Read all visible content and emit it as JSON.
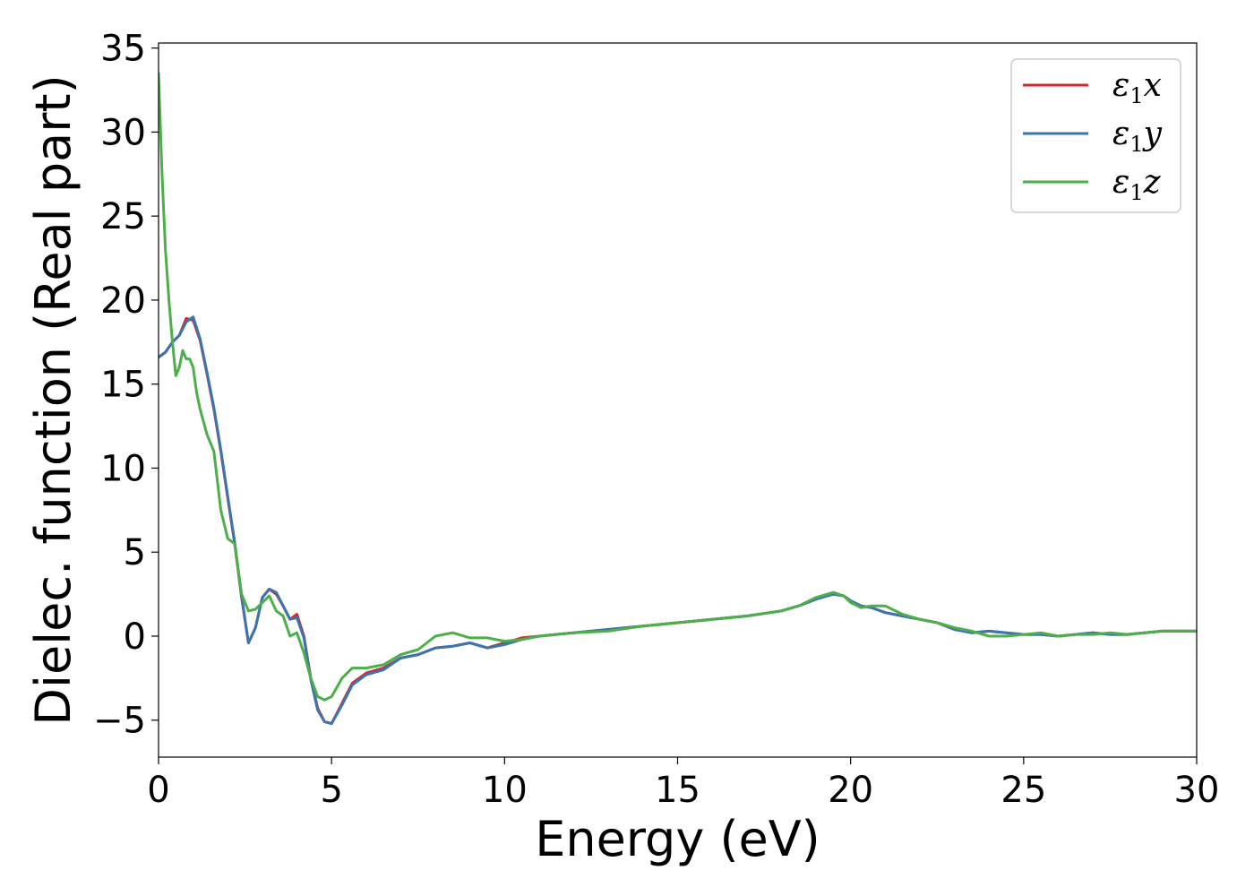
{
  "chart_data": {
    "type": "line",
    "title": "",
    "xlabel": "Energy (eV)",
    "ylabel": "Dielec. function (Real part)",
    "xlim": [
      0,
      30
    ],
    "ylim": [
      -7.2,
      35.3
    ],
    "xticks": [
      0,
      5,
      10,
      15,
      20,
      25,
      30
    ],
    "yticks": [
      -5,
      0,
      5,
      10,
      15,
      20,
      25,
      30,
      35
    ],
    "xtick_labels": [
      "0",
      "5",
      "10",
      "15",
      "20",
      "25",
      "30"
    ],
    "ytick_labels": [
      "−5",
      "0",
      "5",
      "10",
      "15",
      "20",
      "25",
      "30",
      "35"
    ],
    "grid": false,
    "legend_position": "top-right",
    "series": [
      {
        "name": "ε1x",
        "legend_main": "ε",
        "legend_sub": "1",
        "legend_tail": "x",
        "color": "#d62728",
        "x": [
          0,
          0.2,
          0.4,
          0.6,
          0.8,
          1.0,
          1.2,
          1.4,
          1.6,
          1.8,
          2.0,
          2.2,
          2.4,
          2.6,
          2.8,
          3.0,
          3.2,
          3.4,
          3.6,
          3.8,
          4.0,
          4.2,
          4.4,
          4.6,
          4.8,
          5.0,
          5.3,
          5.6,
          6.0,
          6.5,
          7.0,
          7.5,
          8.0,
          8.5,
          9.0,
          9.5,
          10.0,
          10.5,
          11,
          12,
          13,
          14,
          15,
          16,
          17,
          18,
          18.5,
          19,
          19.5,
          19.8,
          20.0,
          20.3,
          20.6,
          21,
          21.5,
          22,
          22.5,
          23,
          23.5,
          24,
          24.5,
          25,
          25.5,
          26,
          26.5,
          27,
          27.5,
          28,
          28.5,
          29,
          29.5,
          30
        ],
        "y": [
          16.6,
          16.9,
          17.5,
          17.9,
          18.9,
          18.8,
          17.6,
          15.6,
          13.5,
          11.0,
          8.2,
          5.5,
          2.3,
          -0.4,
          0.5,
          2.3,
          2.8,
          2.5,
          1.8,
          1.0,
          1.3,
          0.0,
          -2.5,
          -4.3,
          -5.1,
          -5.2,
          -4.0,
          -2.8,
          -2.2,
          -1.9,
          -1.3,
          -1.1,
          -0.7,
          -0.6,
          -0.4,
          -0.7,
          -0.4,
          -0.1,
          0.0,
          0.2,
          0.4,
          0.6,
          0.8,
          1.0,
          1.2,
          1.5,
          1.8,
          2.2,
          2.5,
          2.4,
          2.1,
          1.8,
          1.7,
          1.4,
          1.2,
          1.0,
          0.8,
          0.4,
          0.2,
          0.3,
          0.2,
          0.1,
          0.1,
          0.0,
          0.1,
          0.2,
          0.1,
          0.1,
          0.2,
          0.3,
          0.3,
          0.3
        ]
      },
      {
        "name": "ε1y",
        "legend_main": "ε",
        "legend_sub": "1",
        "legend_tail": "y",
        "color": "#3a75b0",
        "x": [
          0,
          0.2,
          0.4,
          0.6,
          0.8,
          1.0,
          1.2,
          1.4,
          1.6,
          1.8,
          2.0,
          2.2,
          2.4,
          2.6,
          2.8,
          3.0,
          3.2,
          3.4,
          3.6,
          3.8,
          4.0,
          4.2,
          4.4,
          4.6,
          4.8,
          5.0,
          5.3,
          5.6,
          6.0,
          6.5,
          7.0,
          7.5,
          8.0,
          8.5,
          9.0,
          9.5,
          10.0,
          10.5,
          11,
          12,
          13,
          14,
          15,
          16,
          17,
          18,
          18.5,
          19,
          19.5,
          19.8,
          20.0,
          20.3,
          20.6,
          21,
          21.5,
          22,
          22.5,
          23,
          23.5,
          24,
          24.5,
          25,
          25.5,
          26,
          26.5,
          27,
          27.5,
          28,
          28.5,
          29,
          29.5,
          30
        ],
        "y": [
          16.6,
          16.9,
          17.5,
          17.9,
          18.7,
          19.0,
          17.7,
          15.7,
          13.6,
          11.1,
          8.3,
          5.6,
          2.4,
          -0.4,
          0.5,
          2.3,
          2.8,
          2.6,
          1.8,
          1.0,
          1.1,
          -0.1,
          -2.6,
          -4.4,
          -5.1,
          -5.2,
          -4.1,
          -2.9,
          -2.3,
          -2.0,
          -1.3,
          -1.1,
          -0.7,
          -0.6,
          -0.4,
          -0.7,
          -0.5,
          -0.2,
          0.0,
          0.2,
          0.4,
          0.6,
          0.8,
          1.0,
          1.2,
          1.5,
          1.8,
          2.2,
          2.5,
          2.4,
          2.1,
          1.8,
          1.7,
          1.4,
          1.2,
          1.0,
          0.8,
          0.4,
          0.2,
          0.3,
          0.2,
          0.1,
          0.1,
          0.0,
          0.1,
          0.2,
          0.1,
          0.1,
          0.2,
          0.3,
          0.3,
          0.3
        ]
      },
      {
        "name": "ε1z",
        "legend_main": "ε",
        "legend_sub": "1",
        "legend_tail": "z",
        "color": "#4caf4a",
        "x": [
          0,
          0.1,
          0.2,
          0.3,
          0.4,
          0.5,
          0.6,
          0.7,
          0.8,
          0.9,
          1.0,
          1.1,
          1.2,
          1.4,
          1.6,
          1.8,
          2.0,
          2.2,
          2.4,
          2.6,
          2.8,
          3.0,
          3.2,
          3.4,
          3.6,
          3.8,
          4.0,
          4.2,
          4.4,
          4.6,
          4.8,
          5.0,
          5.3,
          5.6,
          6.0,
          6.5,
          7.0,
          7.5,
          8.0,
          8.5,
          9.0,
          9.5,
          10.0,
          10.5,
          11,
          12,
          13,
          14,
          15,
          16,
          17,
          18,
          18.5,
          19,
          19.5,
          19.8,
          20.0,
          20.3,
          20.6,
          21,
          21.5,
          22,
          22.5,
          23,
          23.5,
          24,
          24.5,
          25,
          25.5,
          26,
          26.5,
          27,
          27.5,
          28,
          28.5,
          29,
          29.5,
          30
        ],
        "y": [
          33.5,
          27.5,
          23.0,
          20.0,
          17.5,
          15.5,
          16.0,
          17.0,
          16.5,
          16.5,
          16.0,
          14.5,
          13.5,
          12.0,
          11.0,
          7.5,
          5.8,
          5.5,
          2.5,
          1.5,
          1.6,
          2.0,
          2.4,
          1.5,
          1.2,
          0.0,
          0.2,
          -1.0,
          -2.5,
          -3.6,
          -3.8,
          -3.6,
          -2.5,
          -1.9,
          -1.9,
          -1.7,
          -1.1,
          -0.8,
          0.0,
          0.2,
          -0.1,
          -0.1,
          -0.3,
          -0.2,
          0.0,
          0.2,
          0.3,
          0.6,
          0.8,
          1.0,
          1.2,
          1.5,
          1.8,
          2.3,
          2.6,
          2.4,
          2.0,
          1.7,
          1.8,
          1.8,
          1.3,
          1.0,
          0.8,
          0.5,
          0.3,
          0.0,
          0.0,
          0.1,
          0.2,
          0.0,
          0.1,
          0.1,
          0.2,
          0.1,
          0.2,
          0.3,
          0.3,
          0.3
        ]
      }
    ]
  }
}
